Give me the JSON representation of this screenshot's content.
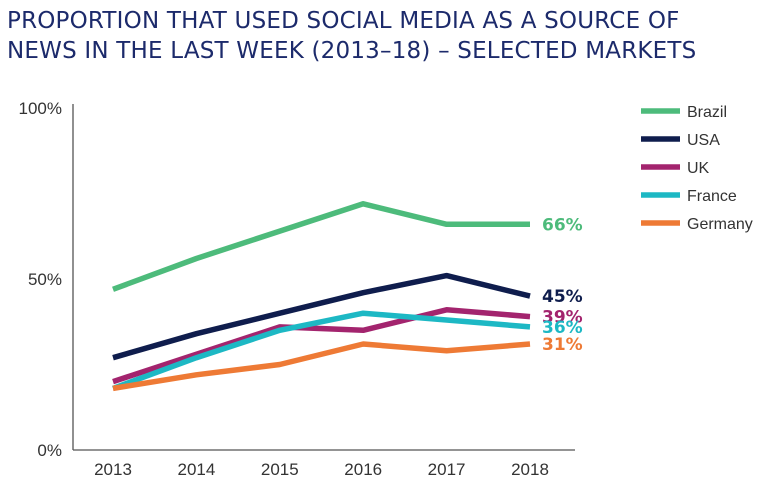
{
  "title": {
    "line1": "PROPORTION THAT USED SOCIAL MEDIA AS A SOURCE OF",
    "line2": "NEWS IN THE LAST WEEK (2013–18) – SELECTED MARKETS"
  },
  "chart_data": {
    "type": "line",
    "title": "PROPORTION THAT USED SOCIAL MEDIA AS A SOURCE OF NEWS IN THE LAST WEEK (2013–18) – SELECTED MARKETS",
    "x": [
      "2013",
      "2014",
      "2015",
      "2016",
      "2017",
      "2018"
    ],
    "ylim": [
      0,
      100
    ],
    "yticks": [
      "0%",
      "50%",
      "100%"
    ],
    "grid": false,
    "legend_position": "right",
    "series": [
      {
        "name": "Brazil",
        "color": "#4dbb7b",
        "values": [
          47,
          56,
          64,
          72,
          66,
          66
        ],
        "end_label": "66%"
      },
      {
        "name": "USA",
        "color": "#0f1d4d",
        "values": [
          27,
          34,
          40,
          46,
          51,
          45
        ],
        "end_label": "45%"
      },
      {
        "name": "UK",
        "color": "#a3246e",
        "values": [
          20,
          28,
          36,
          35,
          41,
          39
        ],
        "end_label": "39%"
      },
      {
        "name": "France",
        "color": "#1db8c4",
        "values": [
          18,
          27,
          35,
          40,
          38,
          36
        ],
        "end_label": "36%"
      },
      {
        "name": "Germany",
        "color": "#ee7a35",
        "values": [
          18,
          22,
          25,
          31,
          29,
          31
        ],
        "end_label": "31%"
      }
    ]
  }
}
